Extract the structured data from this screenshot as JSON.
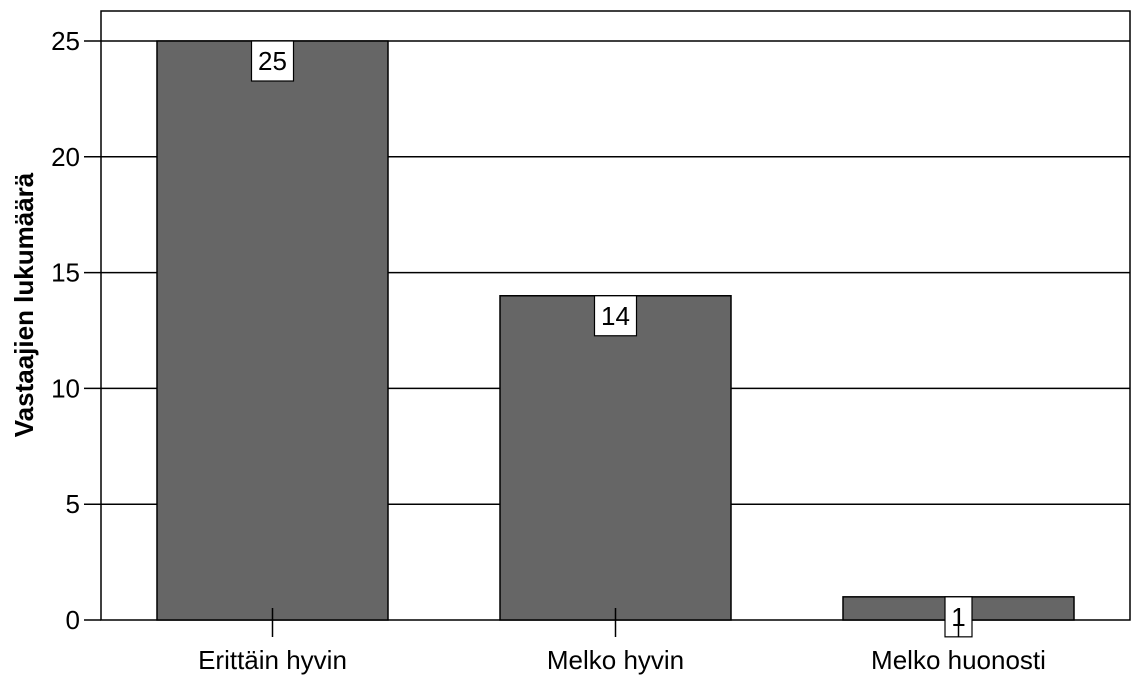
{
  "chart_data": {
    "type": "bar",
    "title": "",
    "xlabel": "",
    "ylabel": "Vastaajien lukumäärä",
    "categories": [
      "Erittäin hyvin",
      "Melko hyvin",
      "Melko huonosti"
    ],
    "values": [
      25,
      14,
      1
    ],
    "data_labels": [
      "25",
      "14",
      "1"
    ],
    "yticks": [
      0,
      5,
      10,
      15,
      20,
      25
    ],
    "ylim": [
      0,
      26.3
    ],
    "grid": true,
    "legend": "none",
    "bar_color": "#666666",
    "gridline_color": "#000000"
  }
}
